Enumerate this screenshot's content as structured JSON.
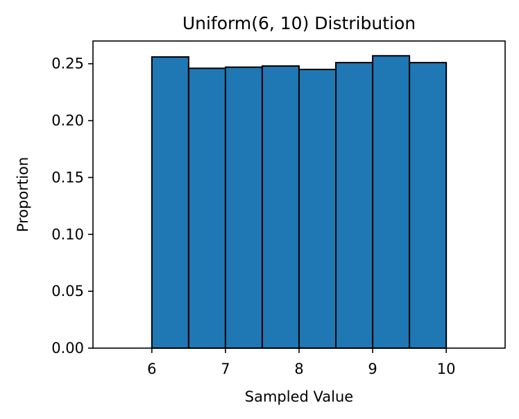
{
  "chart_data": {
    "type": "bar",
    "title": "Uniform(6, 10) Distribution",
    "xlabel": "Sampled Value",
    "ylabel": "Proportion",
    "bins": [
      {
        "x0": 6.0,
        "x1": 6.5,
        "value": 0.256
      },
      {
        "x0": 6.5,
        "x1": 7.0,
        "value": 0.246
      },
      {
        "x0": 7.0,
        "x1": 7.5,
        "value": 0.247
      },
      {
        "x0": 7.5,
        "x1": 8.0,
        "value": 0.248
      },
      {
        "x0": 8.0,
        "x1": 8.5,
        "value": 0.245
      },
      {
        "x0": 8.5,
        "x1": 9.0,
        "value": 0.251
      },
      {
        "x0": 9.0,
        "x1": 9.5,
        "value": 0.257
      },
      {
        "x0": 9.5,
        "x1": 10.0,
        "value": 0.251
      }
    ],
    "xlim": [
      5.2,
      10.8
    ],
    "ylim": [
      0,
      0.27
    ],
    "xticks": [
      6,
      7,
      8,
      9,
      10
    ],
    "xtick_labels": [
      "6",
      "7",
      "8",
      "9",
      "10"
    ],
    "yticks": [
      0,
      0.05,
      0.1,
      0.15,
      0.2,
      0.25
    ],
    "ytick_labels": [
      "0.00",
      "0.05",
      "0.10",
      "0.15",
      "0.20",
      "0.25"
    ],
    "bar_color": "#1f77b4",
    "edge_color": "#000000",
    "grid": false,
    "legend": false
  }
}
